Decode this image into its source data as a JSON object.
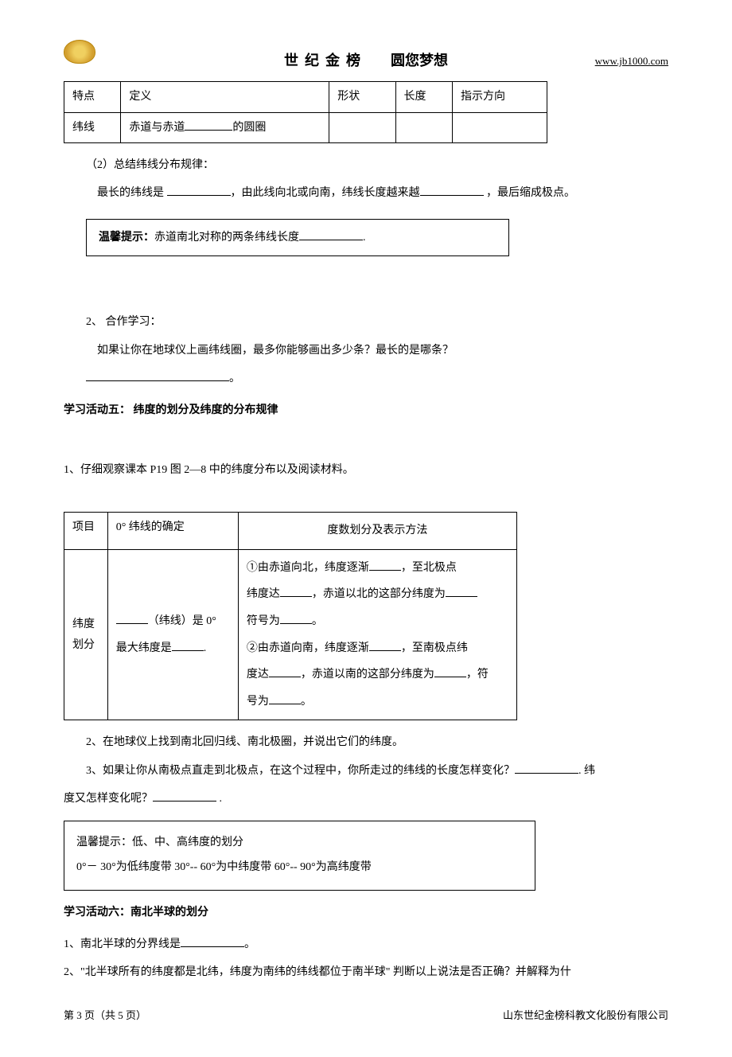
{
  "header": {
    "title": "世纪金榜",
    "subtitle": "圆您梦想",
    "url": "www.jb1000.com"
  },
  "table1": {
    "row1": {
      "c1": "特点",
      "c2": "定义",
      "c3": "形状",
      "c4": "长度",
      "c5": "指示方向"
    },
    "row2": {
      "c1": "纬线",
      "c2_prefix": "赤道与赤道",
      "c2_suffix": "的圆圈"
    }
  },
  "section2": {
    "title": "（2）总结纬线分布规律：",
    "line1_a": "最长的纬线是 ",
    "line1_b": "，由此线向北或向南，纬线长度越来越",
    "line1_c": " ，最后缩成极点。"
  },
  "hint1": {
    "label": "温馨提示：",
    "text": "赤道南北对称的两条纬线长度",
    "suffix": "."
  },
  "coop": {
    "title": "2、 合作学习：",
    "question": "如果让你在地球仪上画纬线圈，最多你能够画出多少条？最长的是哪条？",
    "answer_suffix": "。"
  },
  "activity5": {
    "title": "学习活动五：    纬度的划分及纬度的分布规律",
    "q1": "1、仔细观察课本 P19 图 2—8 中的纬度分布以及阅读材料。"
  },
  "table2": {
    "h1": "项目",
    "h2": "0° 纬线的确定",
    "h3": "度数划分及表示方法",
    "r1c1": "纬度划分",
    "r1c2_a": "（纬线）是 0°",
    "r1c2_b": "最大纬度是",
    "r1c2_c": ".",
    "r1c3_l1a": "①由赤道向北，纬度逐渐",
    "r1c3_l1b": "，至北极点",
    "r1c3_l2a": "纬度达",
    "r1c3_l2b": "，赤道以北的这部分纬度为",
    "r1c3_l3a": "符号为",
    "r1c3_l3b": "。",
    "r1c3_l4a": "②由赤道向南，纬度逐渐",
    "r1c3_l4b": "，至南极点纬",
    "r1c3_l5a": "度达",
    "r1c3_l5b": "，赤道以南的这部分纬度为",
    "r1c3_l5c": "，符",
    "r1c3_l6a": "号为",
    "r1c3_l6b": "。"
  },
  "q2": "2、在地球仪上找到南北回归线、南北极圈，并说出它们的纬度。",
  "q3_a": "3、如果让你从南极点直走到北极点，在这个过程中，你所走过的纬线的长度怎样变化？",
  "q3_b": ". 纬",
  "q3_c": "度又怎样变化呢？",
  "q3_d": " .",
  "hint2": {
    "label": "温馨提示：低、中、高纬度的划分",
    "text": "0°－ 30°为低纬度带  30°-- 60°为中纬度带  60°-- 90°为高纬度带"
  },
  "activity6": {
    "title": "学习活动六：南北半球的划分",
    "q1_a": "1、南北半球的分界线是",
    "q1_b": "。",
    "q2": "2、\"北半球所有的纬度都是北纬，纬度为南纬的纬线都位于南半球\" 判断以上说法是否正确？并解释为什"
  },
  "footer": {
    "page": "第 3 页（共 5 页）",
    "company": "山东世纪金榜科教文化股份有限公司"
  }
}
